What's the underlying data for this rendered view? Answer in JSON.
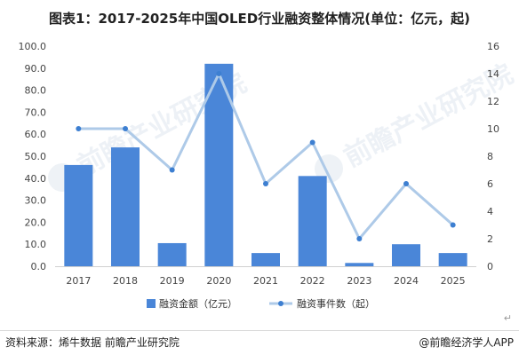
{
  "page": {
    "title": "图表1：2017-2025年中国OLED行业融资整体情况(单位：亿元，起)",
    "source": "资料来源：烯牛数据 前瞻产业研究院",
    "credit": "@前瞻经济学人APP",
    "watermark": "前瞻产业研究院",
    "return_mark": "↵"
  },
  "chart_data": {
    "type": "bar",
    "title": "图表1：2017-2025年中国OLED行业融资整体情况(单位：亿元，起)",
    "categories": [
      "2017",
      "2018",
      "2019",
      "2020",
      "2021",
      "2022",
      "2023",
      "2024",
      "2025"
    ],
    "y_left": {
      "range": [
        0,
        100
      ],
      "ticks": [
        "0.0",
        "10.0",
        "20.0",
        "30.0",
        "40.0",
        "50.0",
        "60.0",
        "70.0",
        "80.0",
        "90.0",
        "100.0"
      ]
    },
    "y_right": {
      "range": [
        0,
        16
      ],
      "ticks": [
        "0",
        "2",
        "4",
        "6",
        "8",
        "10",
        "12",
        "14",
        "16"
      ]
    },
    "series": [
      {
        "name": "融资金额（亿元）",
        "type": "bar",
        "axis": "left",
        "color": "#4a86d8",
        "values": [
          46,
          54,
          10.5,
          92,
          6,
          41,
          1.5,
          10,
          6
        ]
      },
      {
        "name": "融资事件数（起）",
        "type": "line",
        "axis": "right",
        "color": "#aecae8",
        "marker_color": "#3d7fd1",
        "values": [
          10,
          10,
          7,
          14,
          6,
          9,
          2,
          6,
          3
        ]
      }
    ],
    "grid": false,
    "legend": "bottom"
  }
}
